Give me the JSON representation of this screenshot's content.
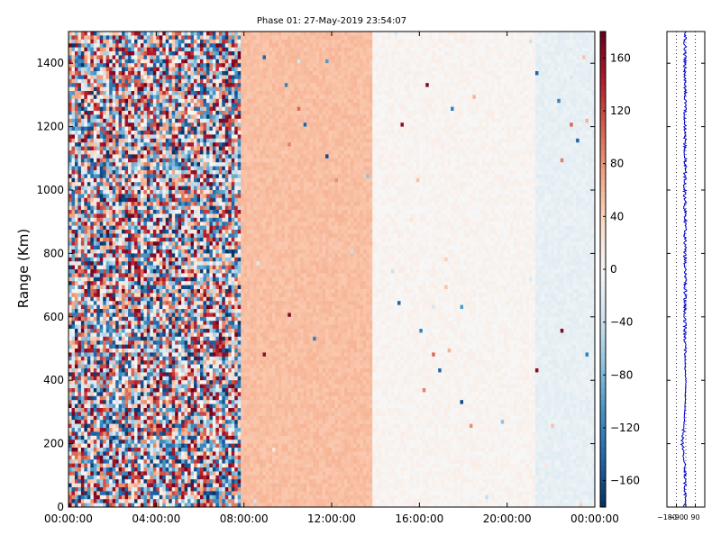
{
  "chart_data": [
    {
      "type": "heatmap",
      "title": "Phase 01: 27-May-2019 23:54:07",
      "xlabel": "",
      "ylabel": "Range (Km)",
      "x_ticks": [
        "00:00:00",
        "04:00:00",
        "08:00:00",
        "12:00:00",
        "16:00:00",
        "20:00:00",
        "00:00:00"
      ],
      "x_tick_hours": [
        0,
        4,
        8,
        12,
        16,
        20,
        24
      ],
      "xlim_hours": [
        0,
        24
      ],
      "y_ticks": [
        0,
        200,
        400,
        600,
        800,
        1000,
        1200,
        1400
      ],
      "ylim": [
        0,
        1500
      ],
      "colorbar": {
        "ticks": [
          160,
          120,
          80,
          40,
          0,
          -40,
          -80,
          -120,
          -160
        ],
        "range": [
          -180,
          180
        ],
        "colormap": "RdBu_r",
        "colors": [
          "#053061",
          "#2166ac",
          "#4393c3",
          "#92c5de",
          "#d1e5f0",
          "#f7f7f7",
          "#fddbc7",
          "#f4a582",
          "#d6604d",
          "#b2182b",
          "#67001f"
        ]
      },
      "regions": [
        {
          "from_hour": 0.0,
          "to_hour": 7.9,
          "phase_deg": "random",
          "note_value": null
        },
        {
          "from_hour": 7.9,
          "to_hour": 13.9,
          "phase_deg": 55
        },
        {
          "from_hour": 13.9,
          "to_hour": 21.3,
          "phase_deg": 5
        },
        {
          "from_hour": 21.3,
          "to_hour": 24.0,
          "phase_deg": -15
        }
      ],
      "grid": false
    },
    {
      "type": "line",
      "xlabel": "",
      "ylabel": "",
      "x_ticks": [
        "-180",
        "-90",
        "0",
        "90"
      ],
      "xlim": [
        -180,
        180
      ],
      "ylim": [
        0,
        1500
      ],
      "series_color": "#0000cc",
      "profile": {
        "y": [
          0,
          100,
          150,
          200,
          250,
          300,
          350,
          400,
          450,
          500,
          600,
          700,
          800,
          900,
          1000,
          1100,
          1200,
          1300,
          1400,
          1500
        ],
        "x_mean": [
          -10,
          -5,
          -15,
          -35,
          -20,
          -10,
          -5,
          0,
          -10,
          -5,
          -10,
          -5,
          -10,
          -5,
          -10,
          -5,
          -10,
          -5,
          -10,
          -5
        ]
      },
      "grid": "vertical-dotted"
    }
  ]
}
